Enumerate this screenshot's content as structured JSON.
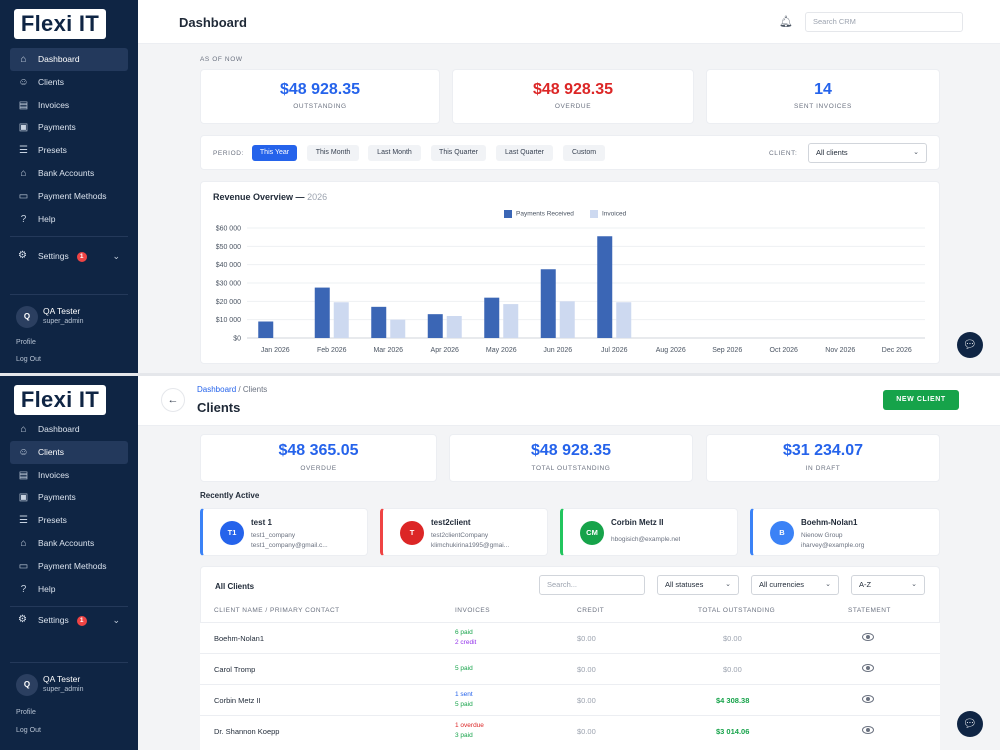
{
  "brand": "Flexi IT",
  "nav": {
    "items": [
      {
        "label": "Dashboard",
        "icon": "home-icon"
      },
      {
        "label": "Clients",
        "icon": "users-icon"
      },
      {
        "label": "Invoices",
        "icon": "invoice-icon"
      },
      {
        "label": "Payments",
        "icon": "payment-icon"
      },
      {
        "label": "Presets",
        "icon": "list-icon"
      },
      {
        "label": "Bank Accounts",
        "icon": "bank-icon"
      },
      {
        "label": "Payment Methods",
        "icon": "card-icon"
      },
      {
        "label": "Help",
        "icon": "help-icon"
      }
    ],
    "settings_label": "Settings",
    "settings_badge": "1",
    "user_name": "QA Tester",
    "user_role": "super_admin",
    "user_initial": "Q",
    "profile_label": "Profile",
    "logout_label": "Log Out"
  },
  "dashboard": {
    "title": "Dashboard",
    "search_placeholder": "Search CRM",
    "as_of": "AS OF NOW",
    "stats": [
      {
        "value": "$48 928.35",
        "label": "OUTSTANDING",
        "color": "#2563eb"
      },
      {
        "value": "$48 928.35",
        "label": "OVERDUE",
        "color": "#dc2626"
      },
      {
        "value": "14",
        "label": "SENT INVOICES",
        "color": "#2563eb"
      }
    ],
    "period_label": "PERIOD:",
    "periods": [
      "This Year",
      "This Month",
      "Last Month",
      "This Quarter",
      "Last Quarter",
      "Custom"
    ],
    "active_period": "This Year",
    "client_label": "CLIENT:",
    "client_value": "All clients",
    "chart_title": "Revenue Overview",
    "chart_year": "2026"
  },
  "chart_data": {
    "type": "bar",
    "title": "Revenue Overview — 2026",
    "categories": [
      "Jan 2026",
      "Feb 2026",
      "Mar 2026",
      "Apr 2026",
      "May 2026",
      "Jun 2026",
      "Jul 2026",
      "Aug 2026",
      "Sep 2026",
      "Oct 2026",
      "Nov 2026",
      "Dec 2026"
    ],
    "series": [
      {
        "name": "Payments Received",
        "color": "#3b66b5",
        "values": [
          9000,
          27500,
          17000,
          13000,
          22000,
          37500,
          55500,
          0,
          0,
          0,
          0,
          0
        ]
      },
      {
        "name": "Invoiced",
        "color": "#cdd9f0",
        "values": [
          0,
          19500,
          10000,
          12000,
          18500,
          20000,
          19500,
          0,
          0,
          0,
          0,
          0
        ]
      }
    ],
    "yticks": [
      "$0",
      "$10 000",
      "$20 000",
      "$30 000",
      "$40 000",
      "$50 000",
      "$60 000"
    ],
    "ylim": [
      0,
      60000
    ],
    "legend": "top-center",
    "grid": true
  },
  "clients": {
    "breadcrumb_root": "Dashboard",
    "breadcrumb_sep": "/",
    "breadcrumb_current": "Clients",
    "title": "Clients",
    "new_client_label": "NEW CLIENT",
    "stats": [
      {
        "value": "$48 365.05",
        "label": "OVERDUE"
      },
      {
        "value": "$48 928.35",
        "label": "TOTAL OUTSTANDING"
      },
      {
        "value": "$31 234.07",
        "label": "IN DRAFT"
      }
    ],
    "recently_active_label": "Recently Active",
    "recent": [
      {
        "initials": "T1",
        "name": "test 1",
        "line1": "test1_company",
        "line2": "test1_company@gmail.c...",
        "color": "#2563eb",
        "accent": "#3b82f6"
      },
      {
        "initials": "T",
        "name": "test2client",
        "line1": "test2clientCompany",
        "line2": "klimchukirina1995@gmai...",
        "color": "#dc2626",
        "accent": "#ef4444"
      },
      {
        "initials": "CM",
        "name": "Corbin Metz II",
        "line1": "hbogisich@example.net",
        "line2": "",
        "color": "#16a34a",
        "accent": "#22c55e"
      },
      {
        "initials": "B",
        "name": "Boehm-Nolan1",
        "line1": "Nienow Group",
        "line2": "iharvey@example.org",
        "color": "#3b82f6",
        "accent": "#3b82f6"
      }
    ],
    "all_clients_label": "All Clients",
    "search_placeholder": "Search...",
    "status_filter": "All statuses",
    "currency_filter": "All currencies",
    "sort": "A-Z",
    "columns": [
      "CLIENT NAME / PRIMARY CONTACT",
      "INVOICES",
      "CREDIT",
      "TOTAL OUTSTANDING",
      "STATEMENT"
    ],
    "rows": [
      {
        "name": "Boehm-Nolan1",
        "inv1": "6 paid",
        "inv1_color": "#16a34a",
        "inv2": "2 credit",
        "inv2_color": "#9333ea",
        "credit": "$0.00",
        "outstanding": "$0.00",
        "out_color": "#9ca3af"
      },
      {
        "name": "Carol Tromp",
        "inv1": "5 paid",
        "inv1_color": "#16a34a",
        "inv2": "",
        "inv2_color": "",
        "credit": "$0.00",
        "outstanding": "$0.00",
        "out_color": "#9ca3af"
      },
      {
        "name": "Corbin Metz II",
        "inv1": "1 sent",
        "inv1_color": "#2563eb",
        "inv2": "5 paid",
        "inv2_color": "#16a34a",
        "credit": "$0.00",
        "outstanding": "$4 308.38",
        "out_color": "#16a34a"
      },
      {
        "name": "Dr. Shannon Koepp",
        "inv1": "1 overdue",
        "inv1_color": "#dc2626",
        "inv2": "3 paid",
        "inv2_color": "#16a34a",
        "credit": "$0.00",
        "outstanding": "$3 014.06",
        "out_color": "#16a34a"
      }
    ]
  }
}
